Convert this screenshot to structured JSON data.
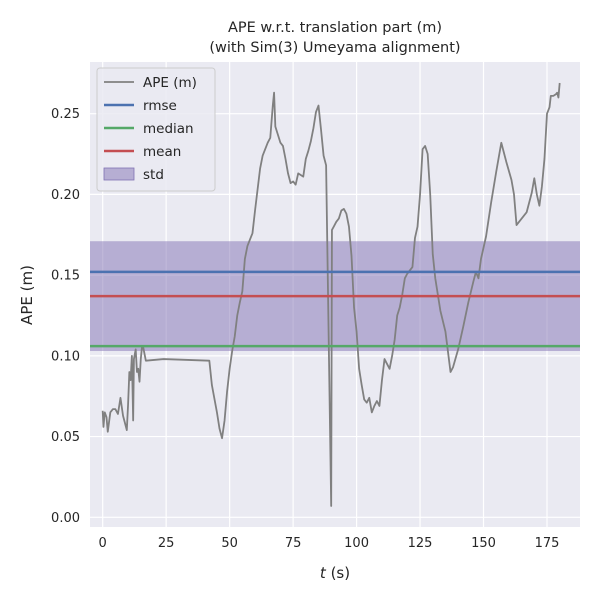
{
  "chart_data": {
    "type": "line",
    "title": "APE w.r.t. translation part (m)",
    "subtitle": "(with Sim(3) Umeyama alignment)",
    "xlabel_italic": "t",
    "xlabel_unit": " (s)",
    "ylabel": "APE (m)",
    "xlim": [
      -5,
      188
    ],
    "ylim": [
      -0.006,
      0.282
    ],
    "xticks": [
      0,
      25,
      50,
      75,
      100,
      125,
      150,
      175
    ],
    "yticks": [
      0.0,
      0.05,
      0.1,
      0.15,
      0.2,
      0.25
    ],
    "xtick_labels": [
      "0",
      "25",
      "50",
      "75",
      "100",
      "125",
      "150",
      "175"
    ],
    "ytick_labels": [
      "0.00",
      "0.05",
      "0.10",
      "0.15",
      "0.20",
      "0.25"
    ],
    "grid": true,
    "legend_position": "top-left",
    "background": "#eaeaf2",
    "colors": {
      "ape": "#808080",
      "rmse": "#4c72b0",
      "median": "#55a868",
      "mean": "#c44e52",
      "std": "#8172b3"
    },
    "stats": {
      "rmse": 0.152,
      "median": 0.106,
      "mean": 0.137,
      "std_low": 0.103,
      "std_high": 0.171
    },
    "legend": [
      {
        "key": "ape",
        "label": "APE (m)",
        "kind": "line"
      },
      {
        "key": "rmse",
        "label": "rmse",
        "kind": "line"
      },
      {
        "key": "median",
        "label": "median",
        "kind": "line"
      },
      {
        "key": "mean",
        "label": "mean",
        "kind": "line"
      },
      {
        "key": "std",
        "label": "std",
        "kind": "patch"
      }
    ],
    "series": [
      {
        "key": "ape",
        "label": "APE (m)",
        "points": [
          [
            0,
            0.066
          ],
          [
            0.3,
            0.056
          ],
          [
            0.8,
            0.065
          ],
          [
            1.5,
            0.062
          ],
          [
            2,
            0.053
          ],
          [
            3,
            0.065
          ],
          [
            4,
            0.067
          ],
          [
            5,
            0.067
          ],
          [
            6,
            0.064
          ],
          [
            7,
            0.074
          ],
          [
            8,
            0.063
          ],
          [
            9,
            0.057
          ],
          [
            9.5,
            0.054
          ],
          [
            10,
            0.07
          ],
          [
            10.5,
            0.09
          ],
          [
            11,
            0.085
          ],
          [
            11.5,
            0.1
          ],
          [
            12,
            0.06
          ],
          [
            12.3,
            0.098
          ],
          [
            13,
            0.104
          ],
          [
            13.5,
            0.09
          ],
          [
            14,
            0.092
          ],
          [
            14.5,
            0.084
          ],
          [
            15,
            0.098
          ],
          [
            15.5,
            0.106
          ],
          [
            16,
            0.105
          ],
          [
            17,
            0.097
          ],
          [
            24,
            0.098
          ],
          [
            42,
            0.097
          ],
          [
            43,
            0.082
          ],
          [
            45,
            0.065
          ],
          [
            46,
            0.055
          ],
          [
            47,
            0.049
          ],
          [
            48,
            0.06
          ],
          [
            49,
            0.078
          ],
          [
            50,
            0.092
          ],
          [
            51,
            0.103
          ],
          [
            52,
            0.112
          ],
          [
            53,
            0.125
          ],
          [
            54,
            0.133
          ],
          [
            55,
            0.14
          ],
          [
            56,
            0.16
          ],
          [
            57,
            0.168
          ],
          [
            58,
            0.172
          ],
          [
            59,
            0.176
          ],
          [
            60,
            0.19
          ],
          [
            61,
            0.203
          ],
          [
            62,
            0.216
          ],
          [
            63,
            0.224
          ],
          [
            64,
            0.228
          ],
          [
            65,
            0.232
          ],
          [
            66,
            0.235
          ],
          [
            67,
            0.255
          ],
          [
            67.5,
            0.263
          ],
          [
            68,
            0.242
          ],
          [
            69,
            0.237
          ],
          [
            70,
            0.232
          ],
          [
            71,
            0.23
          ],
          [
            72,
            0.222
          ],
          [
            73,
            0.213
          ],
          [
            74,
            0.207
          ],
          [
            75,
            0.208
          ],
          [
            76,
            0.206
          ],
          [
            77,
            0.213
          ],
          [
            78,
            0.212
          ],
          [
            79,
            0.211
          ],
          [
            80,
            0.222
          ],
          [
            81,
            0.227
          ],
          [
            82,
            0.233
          ],
          [
            83,
            0.241
          ],
          [
            84,
            0.251
          ],
          [
            85,
            0.255
          ],
          [
            86,
            0.24
          ],
          [
            87,
            0.224
          ],
          [
            88,
            0.218
          ],
          [
            90,
            0.007
          ],
          [
            90.3,
            0.178
          ],
          [
            91,
            0.18
          ],
          [
            92,
            0.183
          ],
          [
            93,
            0.185
          ],
          [
            94,
            0.19
          ],
          [
            95,
            0.191
          ],
          [
            96,
            0.188
          ],
          [
            97,
            0.18
          ],
          [
            98,
            0.162
          ],
          [
            99,
            0.13
          ],
          [
            100,
            0.115
          ],
          [
            101,
            0.092
          ],
          [
            102,
            0.082
          ],
          [
            103,
            0.073
          ],
          [
            104,
            0.071
          ],
          [
            105,
            0.074
          ],
          [
            106,
            0.065
          ],
          [
            107,
            0.069
          ],
          [
            108,
            0.072
          ],
          [
            109,
            0.069
          ],
          [
            110,
            0.085
          ],
          [
            111,
            0.098
          ],
          [
            112,
            0.095
          ],
          [
            113,
            0.092
          ],
          [
            114,
            0.1
          ],
          [
            115,
            0.11
          ],
          [
            116,
            0.125
          ],
          [
            117,
            0.13
          ],
          [
            118,
            0.138
          ],
          [
            119,
            0.148
          ],
          [
            120,
            0.151
          ],
          [
            121,
            0.153
          ],
          [
            122,
            0.155
          ],
          [
            123,
            0.173
          ],
          [
            124,
            0.18
          ],
          [
            125,
            0.2
          ],
          [
            126,
            0.228
          ],
          [
            127,
            0.23
          ],
          [
            128,
            0.225
          ],
          [
            129,
            0.2
          ],
          [
            130,
            0.163
          ],
          [
            131,
            0.148
          ],
          [
            133,
            0.128
          ],
          [
            135,
            0.115
          ],
          [
            137,
            0.09
          ],
          [
            138,
            0.093
          ],
          [
            140,
            0.104
          ],
          [
            142,
            0.118
          ],
          [
            144,
            0.133
          ],
          [
            146,
            0.146
          ],
          [
            147,
            0.152
          ],
          [
            148,
            0.148
          ],
          [
            149,
            0.16
          ],
          [
            151,
            0.174
          ],
          [
            153,
            0.195
          ],
          [
            155,
            0.214
          ],
          [
            157,
            0.232
          ],
          [
            159,
            0.22
          ],
          [
            161,
            0.209
          ],
          [
            162,
            0.2
          ],
          [
            163,
            0.181
          ],
          [
            164,
            0.183
          ],
          [
            167,
            0.189
          ],
          [
            169,
            0.201
          ],
          [
            170,
            0.21
          ],
          [
            171,
            0.2
          ],
          [
            172,
            0.193
          ],
          [
            173,
            0.205
          ],
          [
            174,
            0.222
          ],
          [
            175,
            0.25
          ],
          [
            176,
            0.254
          ],
          [
            176.5,
            0.261
          ],
          [
            177.5,
            0.261
          ],
          [
            178.5,
            0.262
          ],
          [
            179,
            0.263
          ],
          [
            179.5,
            0.26
          ],
          [
            180,
            0.269
          ]
        ]
      },
      {
        "key": "rmse",
        "label": "rmse",
        "constant": 0.152
      },
      {
        "key": "median",
        "label": "median",
        "constant": 0.106
      },
      {
        "key": "mean",
        "label": "mean",
        "constant": 0.137
      }
    ]
  }
}
